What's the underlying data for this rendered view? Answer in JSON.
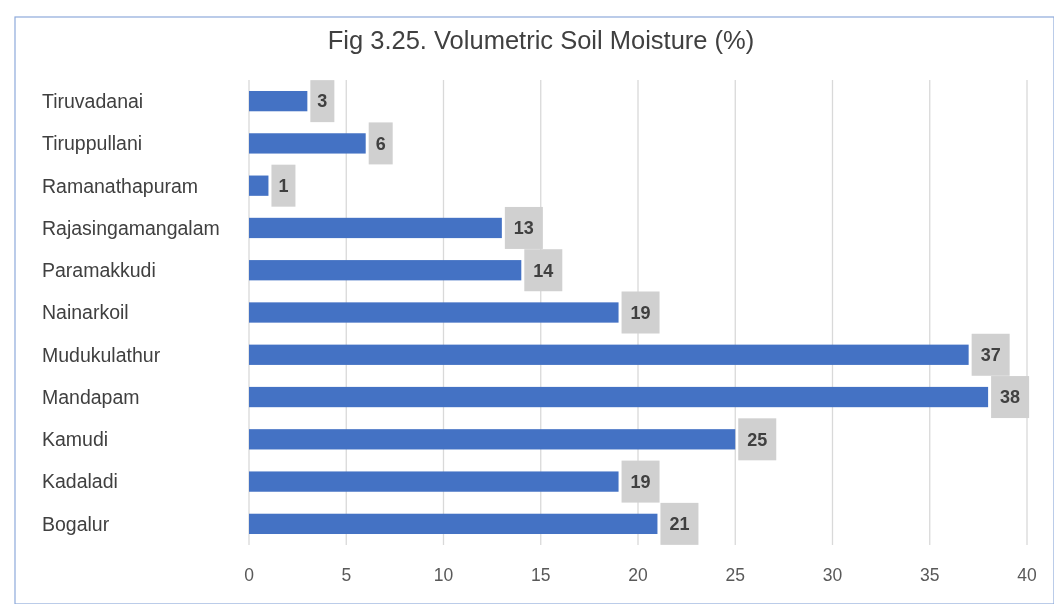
{
  "chart_data": {
    "type": "bar",
    "orientation": "horizontal",
    "title": "Fig 3.25. Volumetric Soil Moisture (%)",
    "categories": [
      "Tiruvadanai",
      "Tiruppullani",
      "Ramanathapuram",
      "Rajasingamangalam",
      "Paramakkudi",
      "Nainarkoil",
      "Mudukulathur",
      "Mandapam",
      "Kamudi",
      "Kadaladi",
      "Bogalur"
    ],
    "values": [
      3,
      6,
      1,
      13,
      14,
      19,
      37,
      38,
      25,
      19,
      21
    ],
    "color": "#4472c4",
    "xlim": [
      0,
      40
    ],
    "xticks": [
      0,
      5,
      10,
      15,
      20,
      25,
      30,
      35,
      40
    ],
    "grid": "x",
    "data_labels": true
  }
}
